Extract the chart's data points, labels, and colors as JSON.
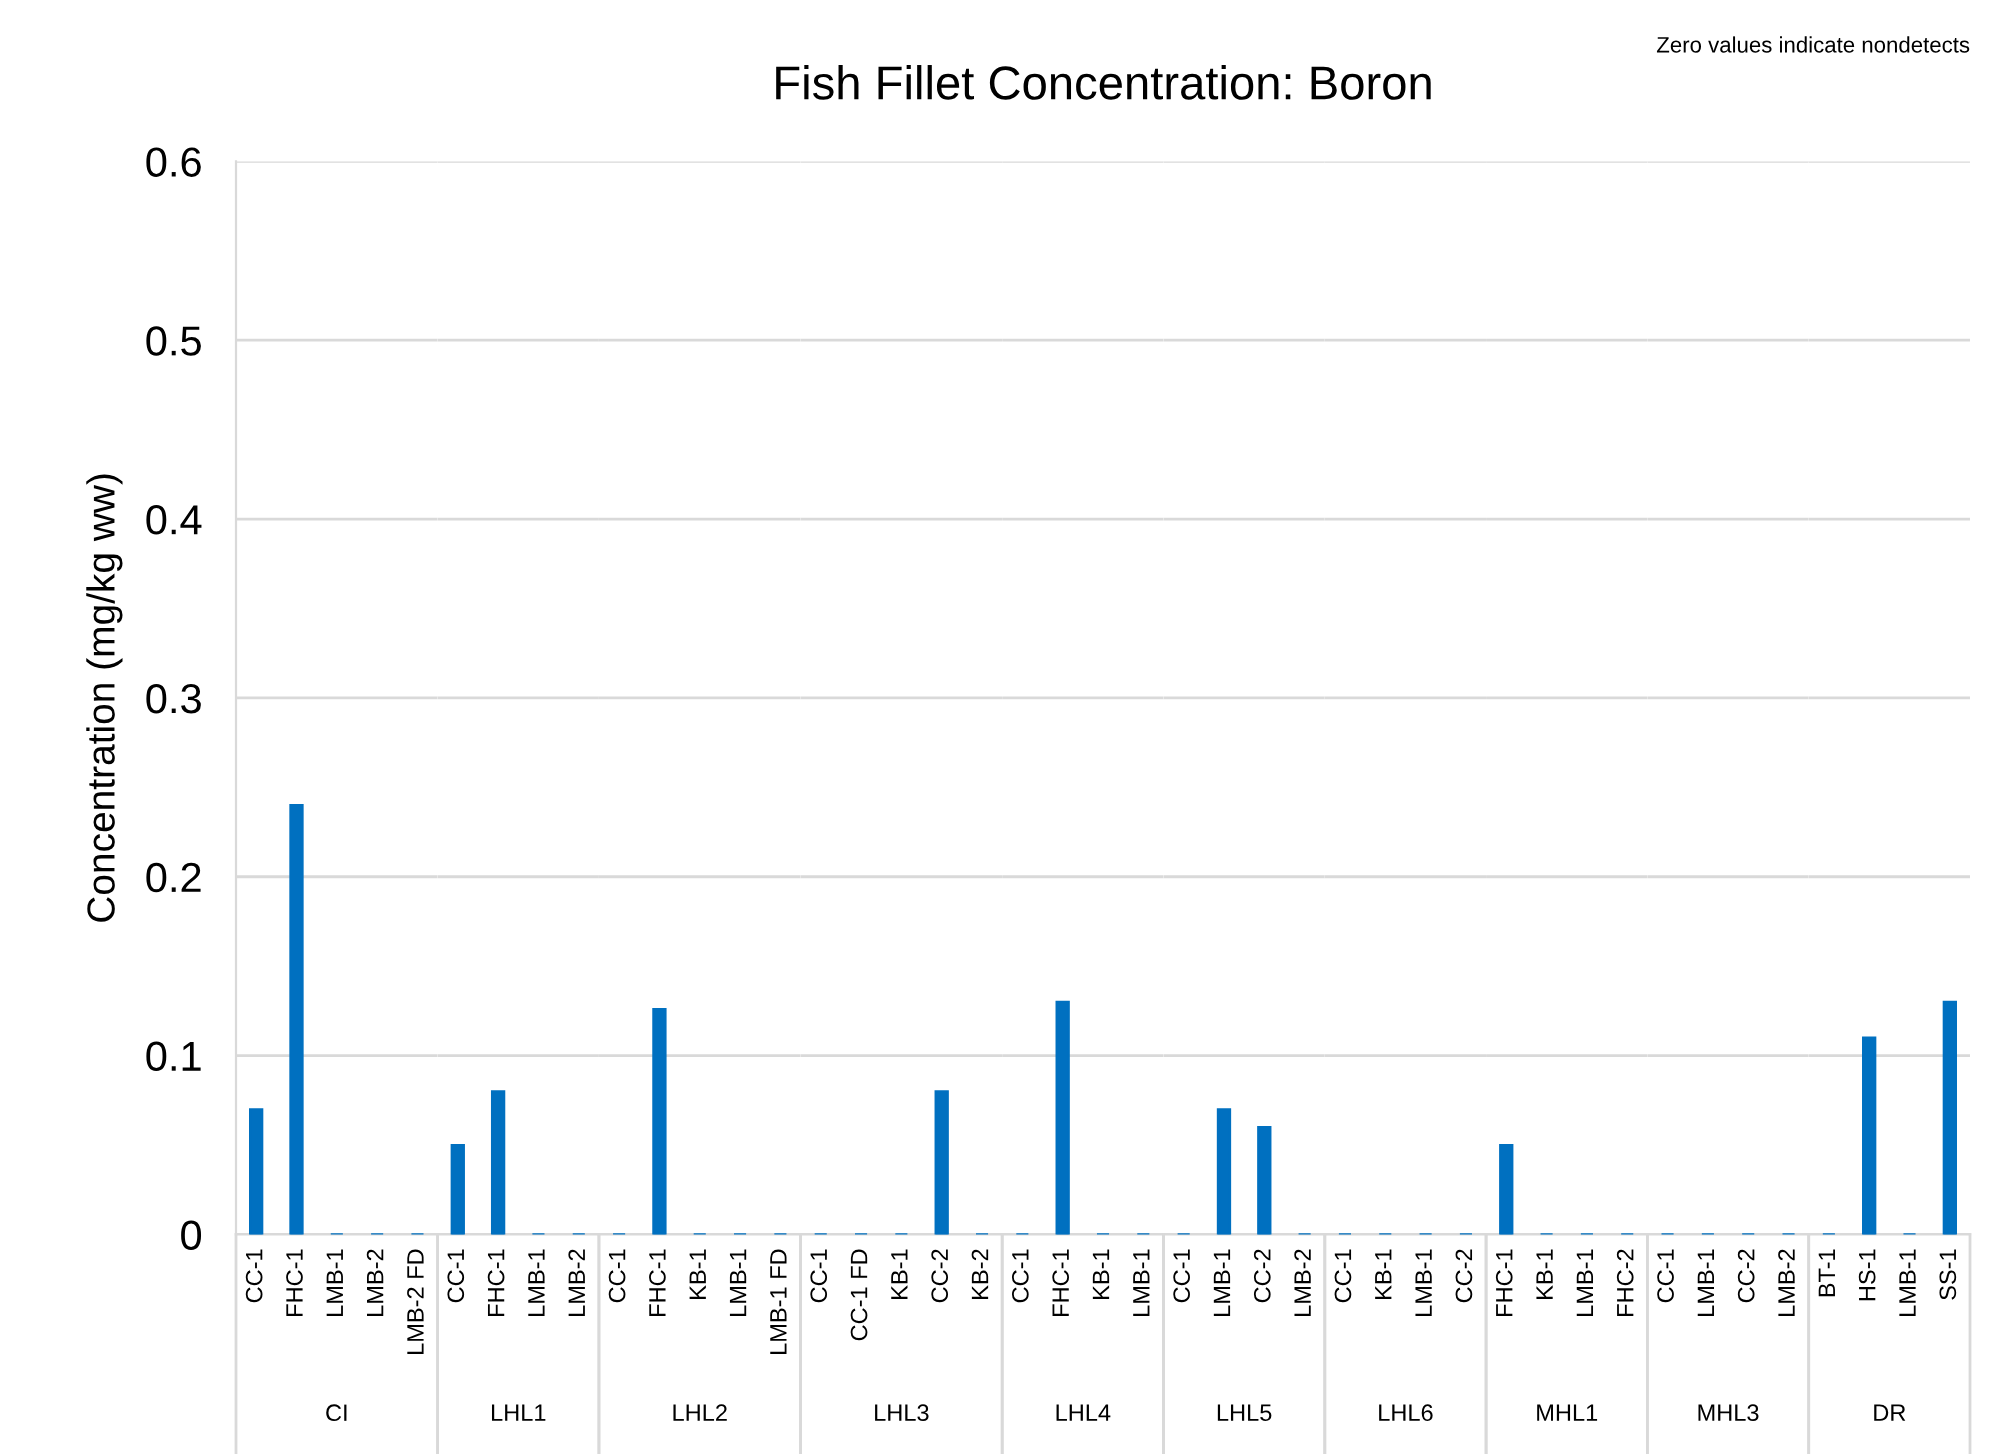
{
  "chart_data": [
    {
      "type": "bar",
      "ylabel": "Concentration (mg/kg ww)",
      "xlabel": "CI",
      "categories": [
        "CC-1",
        "FHC-1",
        "LMB-1",
        "LMB-2",
        "LMB-2 FD"
      ],
      "values": [
        0.07,
        0.24,
        0,
        0,
        0
      ],
      "color": "#0070c0",
      "ylim": [
        0,
        0.6
      ],
      "yticks": [
        0,
        0.1,
        0.2,
        0.3,
        0.4,
        0.5,
        0.6
      ],
      "grid": "y"
    },
    {
      "type": "bar",
      "xlabel": "LHL1",
      "categories": [
        "CC-1",
        "FHC-1",
        "LMB-1",
        "LMB-2"
      ],
      "values": [
        0.05,
        0.08,
        0,
        0
      ],
      "color": "#0070c0",
      "ylim": [
        0,
        0.6
      ],
      "yticks": [
        0,
        0.1,
        0.2,
        0.3,
        0.4,
        0.5,
        0.6
      ],
      "grid": "y",
      "tick_labels": "x"
    },
    {
      "type": "bar",
      "xlabel": "LHL2",
      "categories": [
        "CC-1",
        "FHC-1",
        "KB-1",
        "LMB-1",
        "LMB-1 FD"
      ],
      "values": [
        0,
        0.126,
        0,
        0,
        0
      ],
      "color": "#0070c0",
      "ylim": [
        0,
        0.6
      ],
      "yticks": [
        0,
        0.1,
        0.2,
        0.3,
        0.4,
        0.5,
        0.6
      ],
      "grid": "y",
      "tick_labels": "x"
    },
    {
      "type": "bar",
      "xlabel": "LHL3",
      "categories": [
        "CC-1",
        "CC-1 FD",
        "KB-1",
        "CC-2",
        "KB-2"
      ],
      "values": [
        0,
        0,
        0,
        0.08,
        0
      ],
      "color": "#0070c0",
      "ylim": [
        0,
        0.6
      ],
      "yticks": [
        0,
        0.1,
        0.2,
        0.3,
        0.4,
        0.5,
        0.6
      ],
      "grid": "y",
      "tick_labels": "x"
    },
    {
      "type": "bar",
      "title": "Fish Fillet Concentration: Boron",
      "xlabel": "LHL4",
      "categories": [
        "CC-1",
        "FHC-1",
        "KB-1",
        "LMB-1"
      ],
      "values": [
        0,
        0.13,
        0,
        0
      ],
      "color": "#0070c0",
      "ylim": [
        0,
        0.6
      ],
      "yticks": [
        0,
        0.1,
        0.2,
        0.3,
        0.4,
        0.5,
        0.6
      ],
      "grid": "y",
      "tick_labels": "x"
    },
    {
      "type": "bar",
      "xlabel": "LHL5",
      "categories": [
        "CC-1",
        "LMB-1",
        "CC-2",
        "LMB-2"
      ],
      "values": [
        0,
        0.07,
        0.06,
        0
      ],
      "color": "#0070c0",
      "ylim": [
        0,
        0.6
      ],
      "yticks": [
        0,
        0.1,
        0.2,
        0.3,
        0.4,
        0.5,
        0.6
      ],
      "grid": "y",
      "tick_labels": "x"
    },
    {
      "type": "bar",
      "xlabel": "LHL6",
      "categories": [
        "CC-1",
        "KB-1",
        "LMB-1",
        "CC-2"
      ],
      "values": [
        0,
        0,
        0,
        0
      ],
      "color": "#0070c0",
      "ylim": [
        0,
        0.6
      ],
      "yticks": [
        0,
        0.1,
        0.2,
        0.3,
        0.4,
        0.5,
        0.6
      ],
      "grid": "y",
      "tick_labels": "x"
    },
    {
      "type": "bar",
      "xlabel": "MHL1",
      "categories": [
        "FHC-1",
        "KB-1",
        "LMB-1",
        "FHC-2"
      ],
      "values": [
        0.05,
        0,
        0,
        0
      ],
      "color": "#0070c0",
      "ylim": [
        0,
        0.6
      ],
      "yticks": [
        0,
        0.1,
        0.2,
        0.3,
        0.4,
        0.5,
        0.6
      ],
      "grid": "y",
      "tick_labels": "x"
    },
    {
      "type": "bar",
      "xlabel": "MHL3",
      "categories": [
        "CC-1",
        "LMB-1",
        "CC-2",
        "LMB-2"
      ],
      "values": [
        0,
        0,
        0,
        0
      ],
      "color": "#0070c0",
      "ylim": [
        0,
        0.6
      ],
      "yticks": [
        0,
        0.1,
        0.2,
        0.3,
        0.4,
        0.5,
        0.6
      ],
      "grid": "y",
      "tick_labels": "x"
    },
    {
      "type": "bar",
      "annotations": [
        "Zero values indicate nondetects"
      ],
      "xlabel": "DR",
      "categories": [
        "BT-1",
        "HS-1",
        "LMB-1",
        "SS-1"
      ],
      "values": [
        0,
        0.11,
        0,
        0.13
      ],
      "color": "#0070c0",
      "ylim": [
        0,
        0.6
      ],
      "yticks": [
        0,
        0.1,
        0.2,
        0.3,
        0.4,
        0.5,
        0.6
      ],
      "grid": "y",
      "tick_labels": "x"
    }
  ]
}
